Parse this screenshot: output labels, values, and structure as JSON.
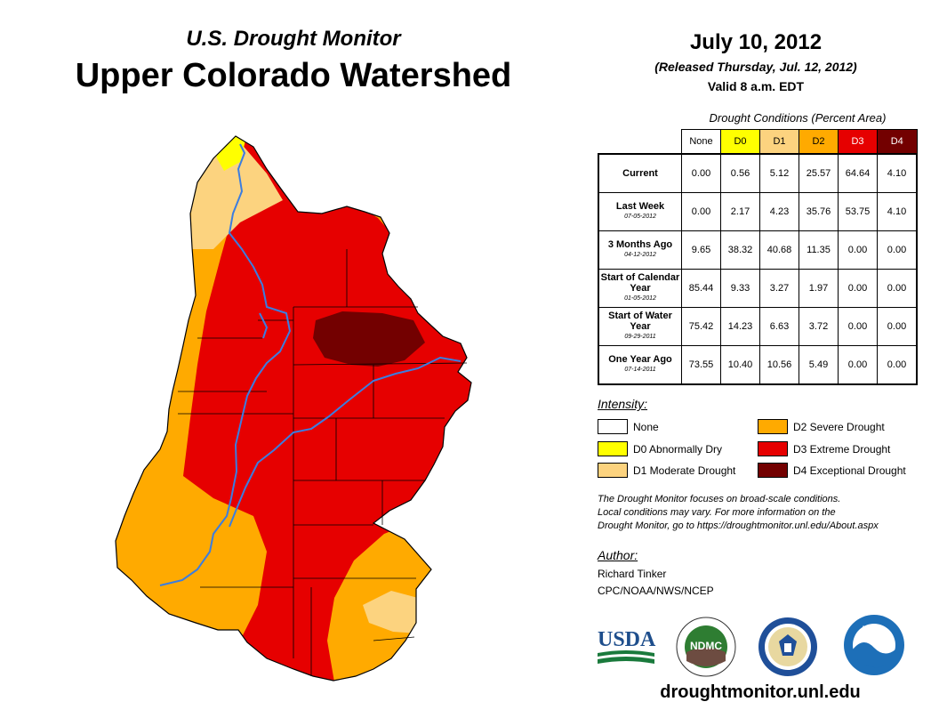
{
  "header": {
    "subtitle": "U.S. Drought Monitor",
    "title": "Upper Colorado Watershed",
    "date": "July 10, 2012",
    "released": "(Released Thursday, Jul. 12, 2012)",
    "valid": "Valid 8 a.m. EDT"
  },
  "conditions": {
    "caption": "Drought Conditions (Percent Area)",
    "columns": [
      "None",
      "D0",
      "D1",
      "D2",
      "D3",
      "D4"
    ],
    "column_colors": [
      "#ffffff",
      "#ffff00",
      "#fcd37f",
      "#ffaa00",
      "#e60000",
      "#730000"
    ],
    "rows": [
      {
        "label": "Current",
        "date": "",
        "values": [
          "0.00",
          "0.56",
          "5.12",
          "25.57",
          "64.64",
          "4.10"
        ]
      },
      {
        "label": "Last Week",
        "date": "07-05-2012",
        "values": [
          "0.00",
          "2.17",
          "4.23",
          "35.76",
          "53.75",
          "4.10"
        ]
      },
      {
        "label": "3 Months Ago",
        "date": "04-12-2012",
        "values": [
          "9.65",
          "38.32",
          "40.68",
          "11.35",
          "0.00",
          "0.00"
        ]
      },
      {
        "label": "Start of Calendar Year",
        "date": "01-05-2012",
        "values": [
          "85.44",
          "9.33",
          "3.27",
          "1.97",
          "0.00",
          "0.00"
        ]
      },
      {
        "label": "Start of Water Year",
        "date": "09-29-2011",
        "values": [
          "75.42",
          "14.23",
          "6.63",
          "3.72",
          "0.00",
          "0.00"
        ]
      },
      {
        "label": "One Year Ago",
        "date": "07-14-2011",
        "values": [
          "73.55",
          "10.40",
          "10.56",
          "5.49",
          "0.00",
          "0.00"
        ]
      }
    ]
  },
  "legend": {
    "title": "Intensity:",
    "items": [
      {
        "label": "None",
        "color": "#ffffff"
      },
      {
        "label": "D0 Abnormally Dry",
        "color": "#ffff00"
      },
      {
        "label": "D1 Moderate Drought",
        "color": "#fcd37f"
      },
      {
        "label": "D2 Severe Drought",
        "color": "#ffaa00"
      },
      {
        "label": "D3 Extreme Drought",
        "color": "#e60000"
      },
      {
        "label": "D4 Exceptional Drought",
        "color": "#730000"
      }
    ]
  },
  "note": {
    "line1": "The Drought Monitor focuses on broad-scale conditions.",
    "line2": "Local conditions may vary. For more information on the",
    "line3": "Drought Monitor, go to https://droughtmonitor.unl.edu/About.aspx"
  },
  "author": {
    "title": "Author:",
    "name": "Richard Tinker",
    "org": "CPC/NOAA/NWS/NCEP"
  },
  "logos": {
    "usda": "USDA",
    "ndmc": "NDMC",
    "noaa": "NOAA"
  },
  "website": "droughtmonitor.unl.edu"
}
